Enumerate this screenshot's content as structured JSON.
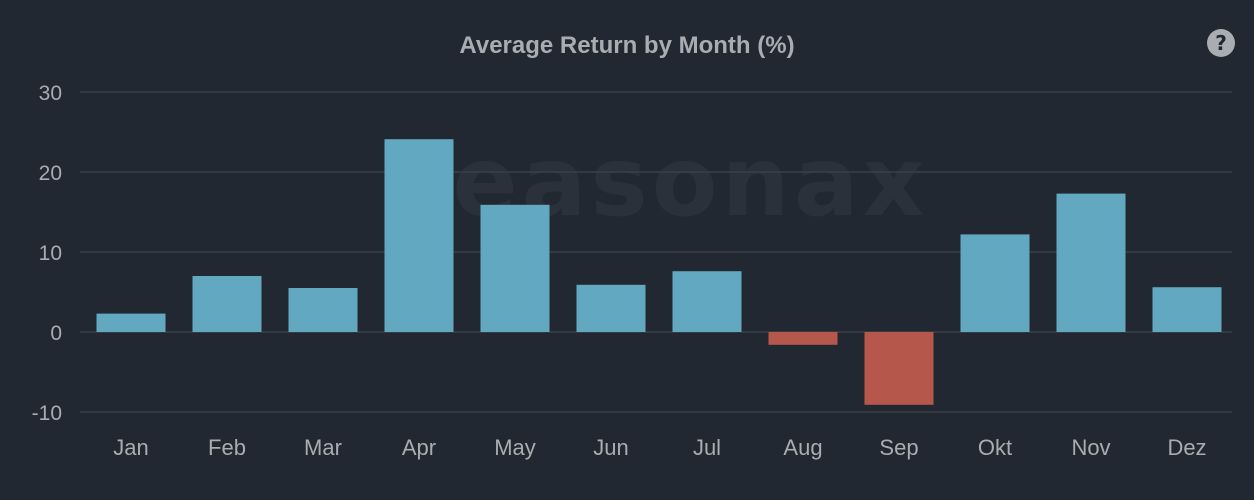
{
  "chart_data": {
    "type": "bar",
    "title": "Average Return by Month (%)",
    "xlabel": "",
    "ylabel": "",
    "categories": [
      "Jan",
      "Feb",
      "Mar",
      "Apr",
      "May",
      "Jun",
      "Jul",
      "Aug",
      "Sep",
      "Okt",
      "Nov",
      "Dez"
    ],
    "values": [
      2.3,
      7.0,
      5.5,
      24.1,
      15.9,
      5.9,
      7.6,
      -1.6,
      -9.1,
      12.2,
      17.3,
      5.6
    ],
    "ylim": [
      -10,
      30
    ],
    "yticks": [
      "30",
      "20",
      "10",
      "0",
      "-10"
    ],
    "grid": true,
    "watermark": "seasonax",
    "colors": {
      "positive": "#62a8c0",
      "negative": "#b5574b",
      "background": "#222831",
      "grid": "#3a4049",
      "text": "#a9acb1"
    }
  },
  "help_icon": "question-circle-icon",
  "help_label": "?"
}
